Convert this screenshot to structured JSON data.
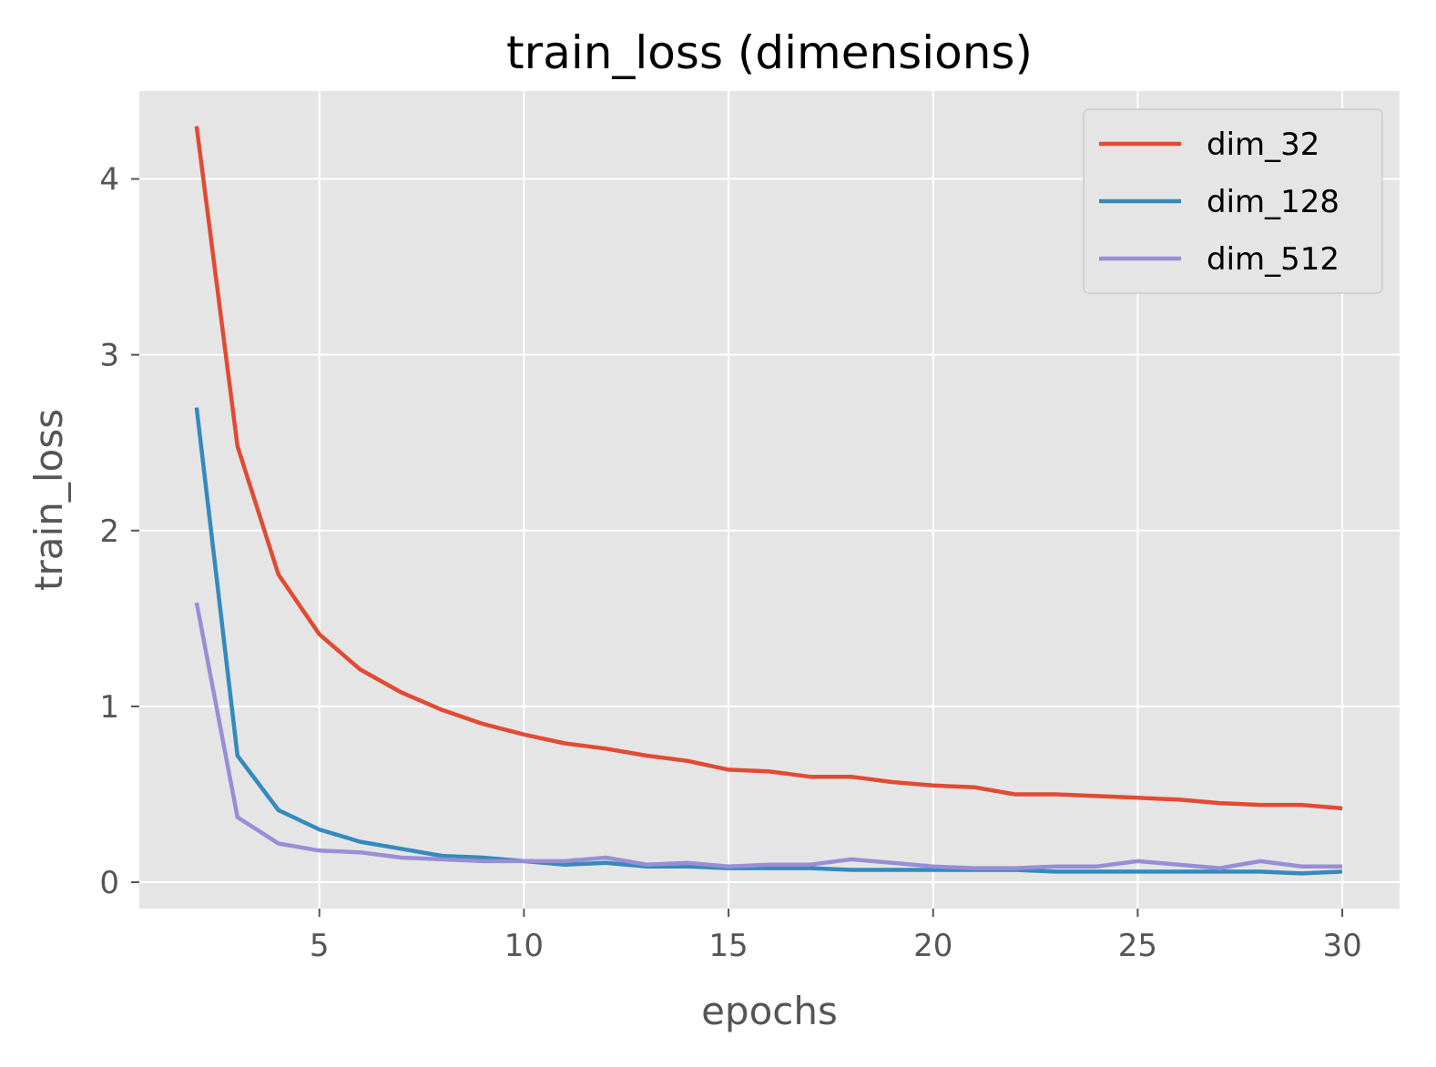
{
  "chart_data": {
    "type": "line",
    "title": "train_loss (dimensions)",
    "xlabel": "epochs",
    "ylabel": "train_loss",
    "xlim": [
      0.6,
      31.4
    ],
    "ylim": [
      -0.15,
      4.5
    ],
    "xticks": [
      5,
      10,
      15,
      20,
      25,
      30
    ],
    "yticks": [
      0,
      1,
      2,
      3,
      4
    ],
    "grid": true,
    "legend_position": "top-right",
    "x": [
      2,
      3,
      4,
      5,
      6,
      7,
      8,
      9,
      10,
      11,
      12,
      13,
      14,
      15,
      16,
      17,
      18,
      19,
      20,
      21,
      22,
      23,
      24,
      25,
      26,
      27,
      28,
      29,
      30
    ],
    "series": [
      {
        "name": "dim_32",
        "color": "#E24A33",
        "values": [
          4.3,
          2.48,
          1.75,
          1.41,
          1.21,
          1.08,
          0.98,
          0.9,
          0.84,
          0.79,
          0.76,
          0.72,
          0.69,
          0.64,
          0.63,
          0.6,
          0.6,
          0.57,
          0.55,
          0.54,
          0.5,
          0.5,
          0.49,
          0.48,
          0.47,
          0.45,
          0.44,
          0.44,
          0.42
        ]
      },
      {
        "name": "dim_128",
        "color": "#348ABD",
        "values": [
          2.7,
          0.72,
          0.41,
          0.3,
          0.23,
          0.19,
          0.15,
          0.14,
          0.12,
          0.1,
          0.11,
          0.09,
          0.09,
          0.08,
          0.08,
          0.08,
          0.07,
          0.07,
          0.07,
          0.07,
          0.07,
          0.06,
          0.06,
          0.06,
          0.06,
          0.06,
          0.06,
          0.05,
          0.06
        ]
      },
      {
        "name": "dim_512",
        "color": "#988ED5",
        "values": [
          1.59,
          0.37,
          0.22,
          0.18,
          0.17,
          0.14,
          0.13,
          0.12,
          0.12,
          0.12,
          0.14,
          0.1,
          0.11,
          0.09,
          0.1,
          0.1,
          0.13,
          0.11,
          0.09,
          0.08,
          0.08,
          0.09,
          0.09,
          0.12,
          0.1,
          0.08,
          0.12,
          0.09,
          0.09
        ]
      }
    ]
  },
  "colors": {
    "plot_background": "#E5E5E5",
    "grid": "#FFFFFF",
    "text": "#555555"
  }
}
